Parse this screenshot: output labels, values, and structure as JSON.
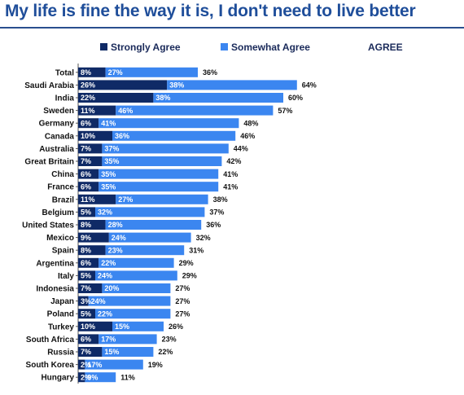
{
  "chart_data": {
    "type": "bar",
    "orientation": "horizontal",
    "stacked": true,
    "title": "My life is fine the way it is, I don't need to live better",
    "legend_position": "top",
    "total_label": "AGREE",
    "categories": [
      "Total",
      "Saudi Arabia",
      "India",
      "Sweden",
      "Germany",
      "Canada",
      "Australia",
      "Great Britain",
      "China",
      "France",
      "Brazil",
      "Belgium",
      "United States",
      "Mexico",
      "Spain",
      "Argentina",
      "Italy",
      "Indonesia",
      "Japan",
      "Poland",
      "Turkey",
      "South Africa",
      "Russia",
      "South Korea",
      "Hungary"
    ],
    "series": [
      {
        "name": "Strongly Agree",
        "color": "#0f2a66",
        "values": [
          8,
          26,
          22,
          11,
          6,
          10,
          7,
          7,
          6,
          6,
          11,
          5,
          8,
          9,
          8,
          6,
          5,
          7,
          3,
          5,
          10,
          6,
          7,
          2,
          2
        ]
      },
      {
        "name": "Somewhat Agree",
        "color": "#3b86f0",
        "values": [
          27,
          38,
          38,
          46,
          41,
          36,
          37,
          35,
          35,
          35,
          27,
          32,
          28,
          24,
          23,
          22,
          24,
          20,
          24,
          22,
          15,
          17,
          15,
          17,
          9
        ]
      }
    ],
    "totals": [
      "36%",
      "64%",
      "60%",
      "57%",
      "48%",
      "46%",
      "44%",
      "42%",
      "41%",
      "41%",
      "38%",
      "37%",
      "36%",
      "32%",
      "31%",
      "29%",
      "29%",
      "27%",
      "27%",
      "27%",
      "26%",
      "23%",
      "22%",
      "19%",
      "11%"
    ],
    "value_suffix": "%",
    "xlim": [
      0,
      70
    ],
    "grid": false
  }
}
